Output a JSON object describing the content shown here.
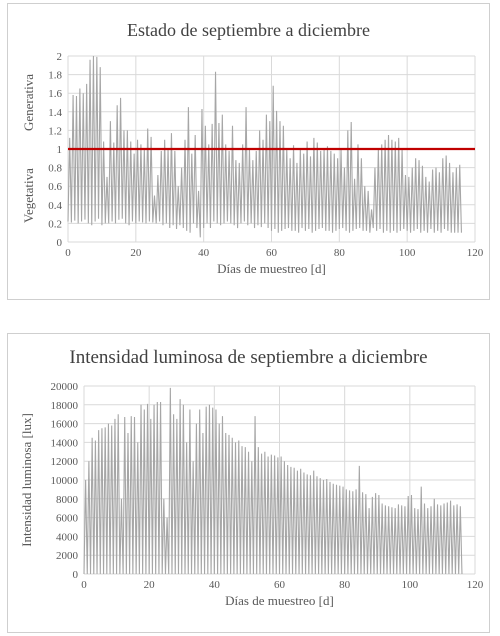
{
  "chart_data": [
    {
      "type": "line",
      "title": "Estado de septiembre a diciembre",
      "xlabel": "Días de muestreo [d]",
      "ylabel_top": "Generativa",
      "ylabel_bottom": "Vegetativa",
      "xlim": [
        0,
        120
      ],
      "ylim": [
        0,
        2
      ],
      "x_ticks": [
        "0",
        "20",
        "40",
        "60",
        "80",
        "100",
        "120"
      ],
      "y_ticks": [
        "0",
        "0.2",
        "0.4",
        "0.6",
        "0.8",
        "1",
        "1.2",
        "1.4",
        "1.6",
        "1.8",
        "2"
      ],
      "grid": true,
      "series_color": "#a6a6a6",
      "threshold": {
        "value": 1,
        "color": "#c00000"
      },
      "series": [
        {
          "x": [
            0,
            1,
            2,
            3,
            4,
            5,
            6,
            7,
            8,
            9,
            10,
            11,
            12,
            13,
            14,
            15,
            16,
            17,
            18,
            19,
            20,
            21,
            22,
            23,
            24,
            25,
            26,
            27,
            28,
            29,
            30,
            31,
            32,
            33,
            34,
            35,
            36,
            37,
            38,
            39,
            40,
            41,
            42,
            43,
            44,
            45,
            46,
            47,
            48,
            49,
            50,
            51,
            52,
            53,
            54,
            55,
            56,
            57,
            58,
            59,
            60,
            61,
            62,
            63,
            64,
            65,
            66,
            67,
            68,
            69,
            70,
            71,
            72,
            73,
            74,
            75,
            76,
            77,
            78,
            79,
            80,
            81,
            82,
            83,
            84,
            85,
            86,
            87,
            88,
            89,
            90,
            91,
            92,
            93,
            94,
            95,
            96,
            97,
            98,
            99,
            100,
            101,
            102,
            103,
            104,
            105,
            106,
            107,
            108,
            109,
            110,
            111,
            112,
            113,
            114,
            115
          ],
          "high": [
            1.12,
            1.58,
            1.57,
            1.65,
            1.6,
            1.7,
            1.96,
            2.0,
            1.99,
            1.88,
            1.08,
            0.7,
            1.3,
            1.07,
            1.47,
            1.55,
            1.2,
            1.2,
            1.08,
            0.95,
            1.1,
            1.05,
            1.0,
            1.22,
            1.13,
            0.5,
            0.72,
            0.98,
            1.1,
            1.0,
            1.17,
            0.98,
            0.6,
            0.8,
            1.1,
            1.45,
            0.95,
            1.15,
            0.55,
            1.43,
            1.25,
            1.05,
            1.27,
            1.83,
            1.28,
            1.37,
            1.05,
            0.98,
            1.25,
            0.88,
            0.85,
            1.05,
            1.45,
            1.0,
            0.88,
            0.98,
            1.2,
            1.1,
            1.37,
            1.3,
            1.68,
            1.41,
            1.3,
            1.25,
            1.0,
            0.9,
            1.04,
            0.85,
            1.0,
            0.95,
            1.08,
            0.92,
            1.12,
            1.07,
            0.98,
            1.0,
            1.03,
            0.98,
            0.95,
            0.9,
            1.0,
            0.8,
            1.2,
            1.29,
            0.68,
            1.05,
            0.9,
            0.6,
            0.55,
            0.35,
            0.8,
            1.0,
            1.05,
            1.1,
            1.15,
            1.1,
            1.08,
            1.12,
            1.0,
            0.72,
            0.7,
            0.8,
            0.9,
            0.88,
            0.82,
            0.7,
            0.65,
            0.78,
            0.8,
            0.75,
            0.9,
            0.93,
            0.85,
            0.75,
            0.8,
            0.83
          ],
          "low": [
            0.22,
            0.21,
            0.23,
            0.2,
            0.22,
            0.24,
            0.2,
            0.18,
            0.22,
            0.25,
            0.18,
            0.2,
            0.2,
            0.22,
            0.2,
            0.24,
            0.25,
            0.2,
            0.18,
            0.22,
            0.2,
            0.22,
            0.21,
            0.2,
            0.22,
            0.21,
            0.2,
            0.22,
            0.18,
            0.2,
            0.15,
            0.18,
            0.14,
            0.18,
            0.15,
            0.12,
            0.1,
            0.2,
            0.15,
            0.05,
            0.15,
            0.2,
            0.15,
            0.22,
            0.2,
            0.18,
            0.2,
            0.22,
            0.2,
            0.18,
            0.15,
            0.2,
            0.22,
            0.18,
            0.2,
            0.15,
            0.18,
            0.16,
            0.2,
            0.15,
            0.12,
            0.14,
            0.1,
            0.12,
            0.14,
            0.15,
            0.12,
            0.12,
            0.1,
            0.15,
            0.12,
            0.14,
            0.1,
            0.12,
            0.14,
            0.15,
            0.12,
            0.12,
            0.1,
            0.12,
            0.14,
            0.15,
            0.12,
            0.1,
            0.12,
            0.14,
            0.15,
            0.12,
            0.12,
            0.1,
            0.15,
            0.12,
            0.14,
            0.1,
            0.12,
            0.1,
            0.12,
            0.1,
            0.12,
            0.14,
            0.12,
            0.1,
            0.12,
            0.14,
            0.1,
            0.12,
            0.1,
            0.14,
            0.1,
            0.12,
            0.1,
            0.14,
            0.12,
            0.1,
            0.1,
            0.1
          ]
        }
      ]
    },
    {
      "type": "line",
      "title": "Intensidad luminosa de septiembre a diciembre",
      "xlabel": "Días de muestreo [d]",
      "ylabel": "Intensidad luminosa [lux]",
      "xlim": [
        0,
        120
      ],
      "ylim": [
        0,
        20000
      ],
      "x_ticks": [
        "0",
        "20",
        "40",
        "60",
        "80",
        "100",
        "120"
      ],
      "y_ticks": [
        "0",
        "2000",
        "4000",
        "6000",
        "8000",
        "10000",
        "12000",
        "14000",
        "16000",
        "18000",
        "20000"
      ],
      "grid": true,
      "series_color": "#a6a6a6",
      "series": [
        {
          "x": [
            0,
            1,
            2,
            3,
            4,
            5,
            6,
            7,
            8,
            9,
            10,
            11,
            12,
            13,
            14,
            15,
            16,
            17,
            18,
            19,
            20,
            21,
            22,
            23,
            24,
            25,
            26,
            27,
            28,
            29,
            30,
            31,
            32,
            33,
            34,
            35,
            36,
            37,
            38,
            39,
            40,
            41,
            42,
            43,
            44,
            45,
            46,
            47,
            48,
            49,
            50,
            51,
            52,
            53,
            54,
            55,
            56,
            57,
            58,
            59,
            60,
            61,
            62,
            63,
            64,
            65,
            66,
            67,
            68,
            69,
            70,
            71,
            72,
            73,
            74,
            75,
            76,
            77,
            78,
            79,
            80,
            81,
            82,
            83,
            84,
            85,
            86,
            87,
            88,
            89,
            90,
            91,
            92,
            93,
            94,
            95,
            96,
            97,
            98,
            99,
            100,
            101,
            102,
            103,
            104,
            105,
            106,
            107,
            108,
            109,
            110,
            111,
            112,
            113,
            114,
            115
          ],
          "values": [
            10000,
            12000,
            14500,
            14200,
            15300,
            15500,
            15600,
            16000,
            15800,
            16500,
            17000,
            8000,
            16700,
            15000,
            16800,
            16700,
            14000,
            18000,
            17500,
            18100,
            16500,
            18000,
            18300,
            18300,
            8000,
            6000,
            19800,
            17000,
            16500,
            18600,
            18000,
            14000,
            17500,
            12000,
            16000,
            17500,
            15000,
            17800,
            18000,
            17700,
            17500,
            16000,
            16800,
            15000,
            14800,
            14500,
            14000,
            14200,
            13600,
            13500,
            13000,
            12000,
            16800,
            13500,
            12800,
            13000,
            12500,
            12700,
            12600,
            12400,
            12500,
            12000,
            11600,
            11400,
            11300,
            11000,
            11200,
            10800,
            10600,
            10500,
            11000,
            10400,
            10200,
            10000,
            10100,
            9800,
            9600,
            9500,
            9400,
            9300,
            9000,
            8900,
            8800,
            9000,
            11500,
            8700,
            8500,
            7000,
            8200,
            8600,
            8400,
            7500,
            7300,
            7200,
            7100,
            7000,
            7400,
            7300,
            7200,
            8300,
            8400,
            7000,
            6900,
            9300,
            7500,
            7000,
            7200,
            8000,
            7400,
            7300,
            7500,
            7600,
            7800,
            7300,
            7400,
            7200
          ]
        }
      ]
    }
  ]
}
